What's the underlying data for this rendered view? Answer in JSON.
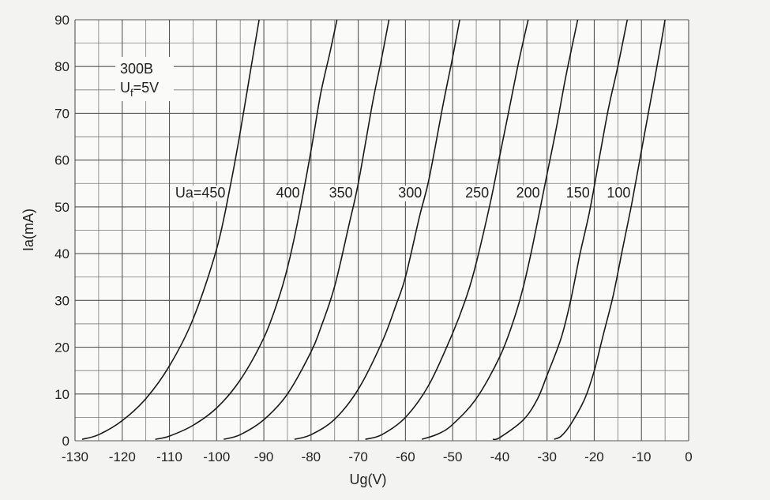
{
  "chart_data": {
    "type": "line",
    "annotation": {
      "tube": "300B",
      "filament_main": "U",
      "filament_sub": "f",
      "filament_rest": "=5V"
    },
    "xlabel": "Ug(V)",
    "ylabel": "Ia(mA)",
    "xlim": [
      -130,
      0
    ],
    "ylim": [
      0,
      90
    ],
    "xticks": [
      -130,
      -120,
      -110,
      -100,
      -90,
      -80,
      -70,
      -60,
      -50,
      -40,
      -30,
      -20,
      -10,
      0
    ],
    "yticks": [
      0,
      10,
      20,
      30,
      40,
      50,
      60,
      70,
      80,
      90
    ],
    "grid": true,
    "series": [
      {
        "name": "Ua=450",
        "points": [
          [
            -128.5,
            0.3
          ],
          [
            -125,
            1.3
          ],
          [
            -120,
            4.3
          ],
          [
            -115,
            9
          ],
          [
            -110,
            16
          ],
          [
            -105,
            26
          ],
          [
            -100,
            41
          ],
          [
            -97,
            55
          ],
          [
            -95,
            66
          ],
          [
            -93,
            78
          ],
          [
            -91,
            90
          ]
        ]
      },
      {
        "name": "400",
        "points": [
          [
            -113,
            0.3
          ],
          [
            -110,
            1
          ],
          [
            -105,
            3.3
          ],
          [
            -100,
            7
          ],
          [
            -95,
            13
          ],
          [
            -90,
            22
          ],
          [
            -87,
            30
          ],
          [
            -85,
            37
          ],
          [
            -83,
            46
          ],
          [
            -80,
            62
          ],
          [
            -78,
            74
          ],
          [
            -76,
            83
          ],
          [
            -74.5,
            90
          ]
        ]
      },
      {
        "name": "350",
        "points": [
          [
            -98.5,
            0.3
          ],
          [
            -95,
            1.3
          ],
          [
            -90,
            4.5
          ],
          [
            -85,
            10
          ],
          [
            -80,
            19
          ],
          [
            -78,
            24
          ],
          [
            -75,
            33
          ],
          [
            -72,
            46
          ],
          [
            -70,
            55
          ],
          [
            -67,
            72
          ],
          [
            -65,
            82
          ],
          [
            -63.5,
            90
          ]
        ]
      },
      {
        "name": "300",
        "points": [
          [
            -83.5,
            0.3
          ],
          [
            -80,
            1.3
          ],
          [
            -75,
            4.6
          ],
          [
            -70,
            11
          ],
          [
            -65,
            21
          ],
          [
            -62,
            29
          ],
          [
            -60,
            35
          ],
          [
            -57,
            48
          ],
          [
            -55,
            56
          ],
          [
            -52,
            72
          ],
          [
            -50,
            82
          ],
          [
            -48.5,
            90
          ]
        ]
      },
      {
        "name": "250",
        "points": [
          [
            -68.5,
            0.3
          ],
          [
            -65,
            1.3
          ],
          [
            -60,
            5
          ],
          [
            -55,
            12
          ],
          [
            -50,
            23
          ],
          [
            -47,
            31
          ],
          [
            -45,
            38
          ],
          [
            -42,
            51
          ],
          [
            -40,
            61
          ],
          [
            -38,
            71
          ],
          [
            -36,
            81
          ],
          [
            -34,
            90
          ]
        ]
      },
      {
        "name": "200",
        "points": [
          [
            -56.5,
            0.3
          ],
          [
            -53,
            1.5
          ],
          [
            -50,
            3.5
          ],
          [
            -45,
            9
          ],
          [
            -40,
            18
          ],
          [
            -37,
            26
          ],
          [
            -35,
            33
          ],
          [
            -33,
            42
          ],
          [
            -30,
            57
          ],
          [
            -28,
            67
          ],
          [
            -26,
            78
          ],
          [
            -23.5,
            90
          ]
        ]
      },
      {
        "name": "150",
        "points": [
          [
            -41.5,
            0.3
          ],
          [
            -40,
            0.7
          ],
          [
            -35,
            4.5
          ],
          [
            -32,
            9
          ],
          [
            -30,
            14
          ],
          [
            -27,
            22
          ],
          [
            -25,
            30
          ],
          [
            -23,
            40
          ],
          [
            -21,
            49
          ],
          [
            -19,
            60
          ],
          [
            -17,
            71
          ],
          [
            -15,
            80
          ],
          [
            -13,
            90
          ]
        ]
      },
      {
        "name": "100",
        "points": [
          [
            -28.5,
            0.3
          ],
          [
            -27,
            1
          ],
          [
            -25,
            3.5
          ],
          [
            -22,
            9
          ],
          [
            -20,
            15
          ],
          [
            -18,
            23
          ],
          [
            -16,
            31
          ],
          [
            -14,
            41
          ],
          [
            -12,
            51
          ],
          [
            -10,
            62
          ],
          [
            -8,
            73
          ],
          [
            -6,
            84
          ],
          [
            -5,
            90
          ]
        ]
      }
    ]
  }
}
